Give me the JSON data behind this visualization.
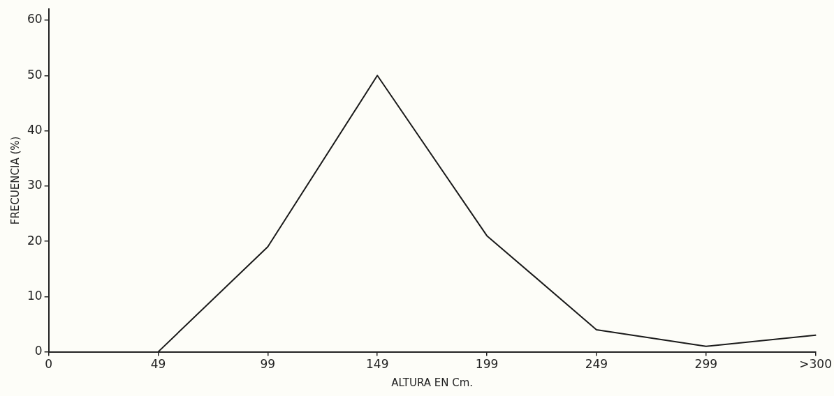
{
  "chart_data": {
    "type": "line",
    "xlabel": "ALTURA EN Cm.",
    "ylabel": "FRECUENCIA (%)",
    "categories": [
      "0",
      "49",
      "99",
      "149",
      "199",
      "249",
      "299",
      ">300"
    ],
    "series": [
      {
        "color": "#1a1a1a",
        "values": [
          null,
          0,
          19,
          50,
          21,
          4,
          1,
          3
        ]
      }
    ],
    "ylim": [
      0,
      62
    ],
    "yticks": [
      0,
      10,
      20,
      30,
      40,
      50,
      60
    ],
    "grid": false,
    "legend": false,
    "marker": "none",
    "line_style": "solid"
  }
}
